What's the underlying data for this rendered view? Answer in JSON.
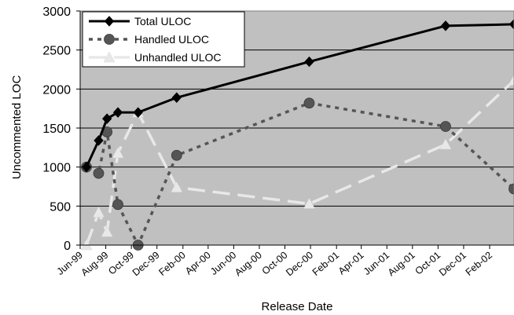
{
  "chart_data": {
    "type": "line",
    "xlabel": "Release Date",
    "ylabel": "Uncommented LOC",
    "ylim": [
      0,
      3000
    ],
    "yticks": [
      "0",
      "500",
      "1000",
      "1500",
      "2000",
      "2500",
      "3000"
    ],
    "y_tick_values": [
      0,
      500,
      1000,
      1500,
      2000,
      2500,
      3000
    ],
    "xlim": [
      "1999-06-01",
      "2002-03-31"
    ],
    "xticks": [
      "Jun-99",
      "Aug-99",
      "Oct-99",
      "Dec-99",
      "Feb-00",
      "Apr-00",
      "Jun-00",
      "Aug-00",
      "Oct-00",
      "Dec-00",
      "Feb-01",
      "Apr-01",
      "Jun-01",
      "Aug-01",
      "Oct-01",
      "Dec-01",
      "Feb-02"
    ],
    "x_tick_dates": [
      "1999-06-01",
      "1999-08-01",
      "1999-10-01",
      "1999-12-01",
      "2000-02-01",
      "2000-04-01",
      "2000-06-01",
      "2000-08-01",
      "2000-10-01",
      "2000-12-01",
      "2001-02-01",
      "2001-04-01",
      "2001-06-01",
      "2001-08-01",
      "2001-10-01",
      "2001-12-01",
      "2002-02-01"
    ],
    "grid": "horizontal",
    "legend_position": "top-left",
    "background_color": "#c0c0c0",
    "series": [
      {
        "name": "Total ULOC",
        "color": "#000000",
        "marker": "diamond",
        "dash": "solid",
        "x": [
          "1999-06-16",
          "1999-07-15",
          "1999-08-04",
          "1999-08-30",
          "1999-10-17",
          "2000-01-17",
          "2000-11-28",
          "2001-10-19",
          "2002-03-31"
        ],
        "y": [
          1000,
          1340,
          1620,
          1700,
          1700,
          1890,
          2350,
          2810,
          2830
        ]
      },
      {
        "name": "Handled ULOC",
        "color": "#555555",
        "marker": "circle",
        "dash": "dotted",
        "x": [
          "1999-06-16",
          "1999-07-15",
          "1999-08-04",
          "1999-08-30",
          "1999-10-17",
          "2000-01-17",
          "2000-11-28",
          "2001-10-19",
          "2002-03-31"
        ],
        "y": [
          1000,
          920,
          1450,
          520,
          0,
          1150,
          1820,
          1520,
          720
        ]
      },
      {
        "name": "Unhandled ULOC",
        "color": "#e8e8e8",
        "marker": "triangle",
        "dash": "dashed",
        "x": [
          "1999-06-16",
          "1999-07-15",
          "1999-08-04",
          "1999-08-30",
          "1999-10-17",
          "2000-01-17",
          "2000-11-28",
          "2001-10-19",
          "2002-03-31"
        ],
        "y": [
          0,
          420,
          170,
          1180,
          1700,
          740,
          530,
          1290,
          2110
        ]
      }
    ]
  }
}
